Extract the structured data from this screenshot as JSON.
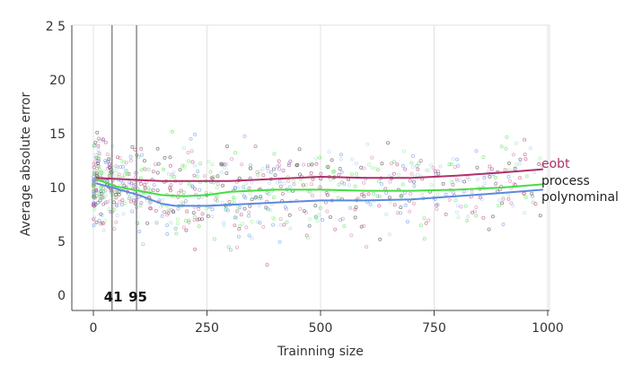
{
  "chart_data": {
    "type": "scatter",
    "xlabel": "Trainning size",
    "ylabel": "Average absolute error",
    "xlim": [
      -50,
      1000
    ],
    "ylim": [
      -3,
      25.6
    ],
    "xticks": [
      0,
      250,
      500,
      750,
      1000
    ],
    "xtick_labels": [
      "0",
      "250",
      "500",
      "750",
      "1000"
    ],
    "yticks": [
      0,
      5,
      10,
      15,
      20,
      25
    ],
    "ytick_labels": [
      "0",
      "5",
      "10",
      "15",
      "20",
      "2 5"
    ],
    "grid": true,
    "vertical_lines": [
      {
        "x": 41,
        "label": "41"
      },
      {
        "x": 95,
        "label": "95"
      }
    ],
    "series": [
      {
        "name": "eobt",
        "color": "#b0306a",
        "trend": [
          [
            5,
            10.9
          ],
          [
            50,
            10.8
          ],
          [
            100,
            10.7
          ],
          [
            150,
            10.6
          ],
          [
            200,
            10.6
          ],
          [
            250,
            10.6
          ],
          [
            300,
            10.6
          ],
          [
            400,
            10.8
          ],
          [
            500,
            11.0
          ],
          [
            600,
            10.9
          ],
          [
            700,
            10.9
          ],
          [
            800,
            11.1
          ],
          [
            900,
            11.4
          ],
          [
            990,
            11.7
          ]
        ]
      },
      {
        "name": "process",
        "color": "#44dd44",
        "trend": [
          [
            5,
            10.8
          ],
          [
            50,
            10.1
          ],
          [
            100,
            9.7
          ],
          [
            150,
            9.3
          ],
          [
            200,
            9.2
          ],
          [
            250,
            9.3
          ],
          [
            300,
            9.6
          ],
          [
            400,
            9.8
          ],
          [
            500,
            9.8
          ],
          [
            600,
            9.7
          ],
          [
            700,
            9.7
          ],
          [
            800,
            9.8
          ],
          [
            900,
            10.0
          ],
          [
            990,
            10.3
          ]
        ]
      },
      {
        "name": "polynominal",
        "color": "#5a8ae0",
        "trend": [
          [
            5,
            10.4
          ],
          [
            50,
            9.9
          ],
          [
            100,
            9.3
          ],
          [
            150,
            8.5
          ],
          [
            180,
            8.3
          ],
          [
            250,
            8.3
          ],
          [
            300,
            8.4
          ],
          [
            400,
            8.6
          ],
          [
            500,
            8.8
          ],
          [
            600,
            8.8
          ],
          [
            700,
            8.9
          ],
          [
            800,
            9.2
          ],
          [
            900,
            9.5
          ],
          [
            990,
            9.8
          ]
        ]
      }
    ],
    "scatter_colors": [
      "#b0306a",
      "#44dd44",
      "#5a8ae0",
      "#333333",
      "#88ee88",
      "#a8c8f0",
      "#d070a0"
    ]
  }
}
